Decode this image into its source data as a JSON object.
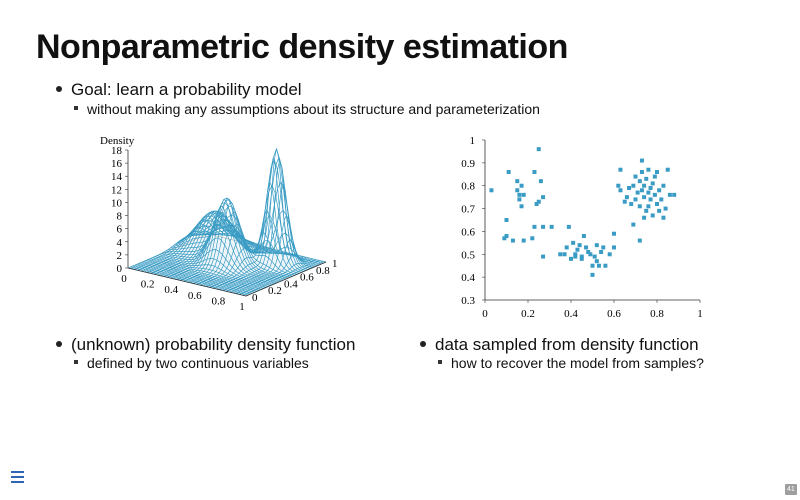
{
  "slide": {
    "title": "Nonparametric density estimation",
    "page_number": "41"
  },
  "bullets": {
    "goal": "Goal: learn a probability model",
    "goal_sub": "without making any assumptions about its structure and parameterization",
    "left": "(unknown) probability density function",
    "left_sub": "defined by two continuous variables",
    "right": "data sampled from density function",
    "right_sub": "how to recover the model from samples?"
  },
  "icons": {
    "menu": "hamburger-menu-icon"
  },
  "chart_data": [
    {
      "type": "surface",
      "zlabel": "Density",
      "z_ticks": [
        "0",
        "2",
        "4",
        "6",
        "8",
        "10",
        "12",
        "14",
        "16",
        "18"
      ],
      "zlim": [
        0,
        18
      ],
      "x_ticks": [
        "0",
        "0.2",
        "0.4",
        "0.6",
        "0.8",
        "1"
      ],
      "y_ticks": [
        "0",
        "0.2",
        "0.4",
        "0.6",
        "0.8",
        "1"
      ],
      "color": "#3a9cc4",
      "peaks": [
        {
          "x": 0.25,
          "y": 0.72,
          "height": 6
        },
        {
          "x": 0.5,
          "y": 0.5,
          "height": 10
        },
        {
          "x": 0.75,
          "y": 0.75,
          "height": 17.5
        }
      ]
    },
    {
      "type": "scatter",
      "xlim": [
        0,
        1
      ],
      "ylim": [
        0.3,
        1
      ],
      "x_ticks": [
        "0",
        "0.2",
        "0.4",
        "0.6",
        "0.8",
        "1"
      ],
      "y_ticks": [
        "0.3",
        "0.4",
        "0.5",
        "0.6",
        "0.7",
        "0.8",
        "0.9",
        "1"
      ],
      "color": "#3a9cc4",
      "points": [
        [
          0.03,
          0.78
        ],
        [
          0.09,
          0.57
        ],
        [
          0.1,
          0.58
        ],
        [
          0.1,
          0.65
        ],
        [
          0.11,
          0.86
        ],
        [
          0.13,
          0.56
        ],
        [
          0.15,
          0.78
        ],
        [
          0.15,
          0.82
        ],
        [
          0.16,
          0.76
        ],
        [
          0.16,
          0.74
        ],
        [
          0.17,
          0.8
        ],
        [
          0.17,
          0.71
        ],
        [
          0.18,
          0.56
        ],
        [
          0.18,
          0.76
        ],
        [
          0.22,
          0.57
        ],
        [
          0.23,
          0.62
        ],
        [
          0.23,
          0.86
        ],
        [
          0.24,
          0.72
        ],
        [
          0.25,
          0.96
        ],
        [
          0.25,
          0.73
        ],
        [
          0.26,
          0.82
        ],
        [
          0.27,
          0.75
        ],
        [
          0.27,
          0.62
        ],
        [
          0.27,
          0.49
        ],
        [
          0.31,
          0.62
        ],
        [
          0.35,
          0.5
        ],
        [
          0.37,
          0.5
        ],
        [
          0.38,
          0.53
        ],
        [
          0.39,
          0.62
        ],
        [
          0.4,
          0.48
        ],
        [
          0.41,
          0.55
        ],
        [
          0.42,
          0.49
        ],
        [
          0.42,
          0.5
        ],
        [
          0.43,
          0.52
        ],
        [
          0.44,
          0.54
        ],
        [
          0.45,
          0.48
        ],
        [
          0.45,
          0.49
        ],
        [
          0.46,
          0.58
        ],
        [
          0.47,
          0.53
        ],
        [
          0.48,
          0.51
        ],
        [
          0.49,
          0.5
        ],
        [
          0.5,
          0.45
        ],
        [
          0.5,
          0.41
        ],
        [
          0.51,
          0.49
        ],
        [
          0.52,
          0.54
        ],
        [
          0.52,
          0.47
        ],
        [
          0.53,
          0.45
        ],
        [
          0.54,
          0.51
        ],
        [
          0.55,
          0.53
        ],
        [
          0.56,
          0.45
        ],
        [
          0.58,
          0.5
        ],
        [
          0.6,
          0.59
        ],
        [
          0.6,
          0.53
        ],
        [
          0.62,
          0.8
        ],
        [
          0.63,
          0.78
        ],
        [
          0.63,
          0.87
        ],
        [
          0.65,
          0.73
        ],
        [
          0.66,
          0.75
        ],
        [
          0.67,
          0.79
        ],
        [
          0.68,
          0.72
        ],
        [
          0.69,
          0.8
        ],
        [
          0.69,
          0.63
        ],
        [
          0.7,
          0.74
        ],
        [
          0.71,
          0.77
        ],
        [
          0.72,
          0.71
        ],
        [
          0.72,
          0.82
        ],
        [
          0.72,
          0.56
        ],
        [
          0.73,
          0.78
        ],
        [
          0.73,
          0.86
        ],
        [
          0.73,
          0.91
        ],
        [
          0.74,
          0.75
        ],
        [
          0.74,
          0.8
        ],
        [
          0.75,
          0.69
        ],
        [
          0.75,
          0.83
        ],
        [
          0.76,
          0.77
        ],
        [
          0.76,
          0.71
        ],
        [
          0.76,
          0.87
        ],
        [
          0.77,
          0.79
        ],
        [
          0.77,
          0.74
        ],
        [
          0.78,
          0.81
        ],
        [
          0.78,
          0.67
        ],
        [
          0.79,
          0.76
        ],
        [
          0.79,
          0.84
        ],
        [
          0.8,
          0.72
        ],
        [
          0.8,
          0.86
        ],
        [
          0.81,
          0.78
        ],
        [
          0.81,
          0.69
        ],
        [
          0.82,
          0.74
        ],
        [
          0.83,
          0.8
        ],
        [
          0.83,
          0.66
        ],
        [
          0.84,
          0.7
        ],
        [
          0.85,
          0.87
        ],
        [
          0.86,
          0.76
        ],
        [
          0.88,
          0.76
        ],
        [
          0.7,
          0.84
        ],
        [
          0.74,
          0.66
        ]
      ]
    }
  ]
}
